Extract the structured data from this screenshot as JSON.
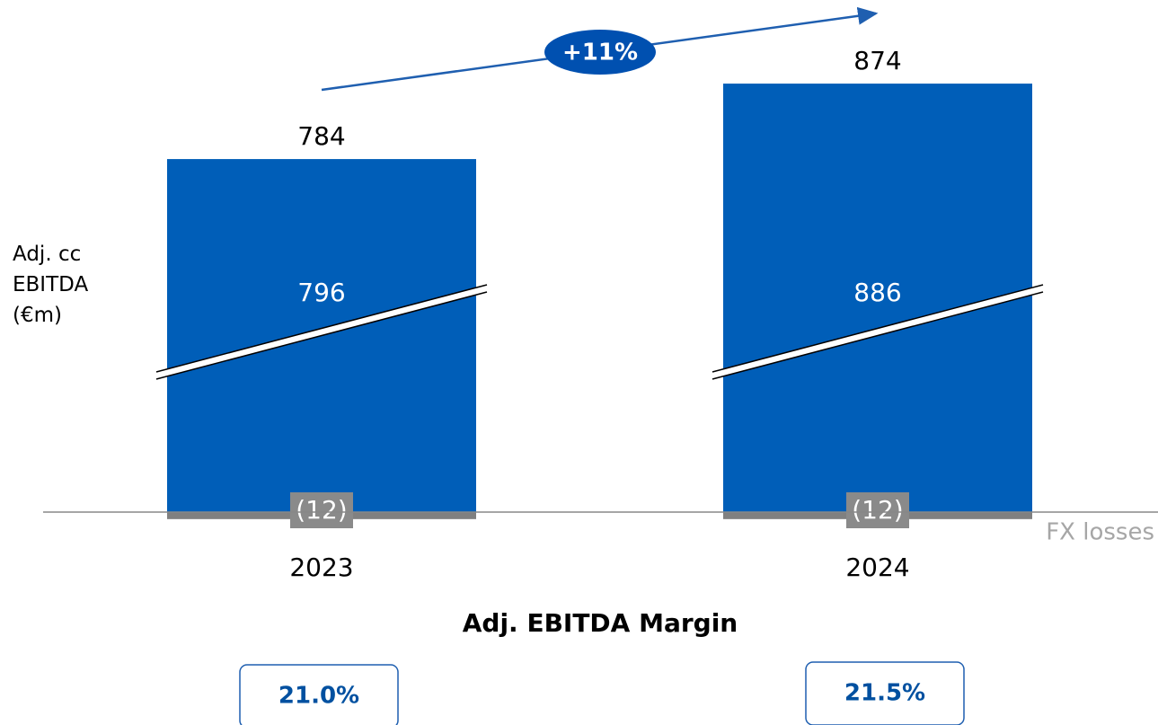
{
  "chart_data": {
    "type": "bar",
    "categories": [
      "2023",
      "2024"
    ],
    "series": [
      {
        "name": "Adj. cc EBITDA (€m)",
        "color": "#005eb8",
        "values": [
          796,
          886
        ]
      },
      {
        "name": "FX losses",
        "color": "#808080",
        "values": [
          -12,
          -12
        ],
        "value_labels": [
          "(12)",
          "(12)"
        ]
      }
    ],
    "totals": [
      784,
      874
    ],
    "growth_label": "+11%",
    "ylim": [
      375,
      900
    ],
    "axis_break": true,
    "subtitle": "Adj. EBITDA Margin",
    "margins": {
      "values": [
        21.0,
        21.5
      ],
      "value_labels": [
        "21.0%",
        "21.5%"
      ],
      "color": "#0050a0"
    }
  }
}
